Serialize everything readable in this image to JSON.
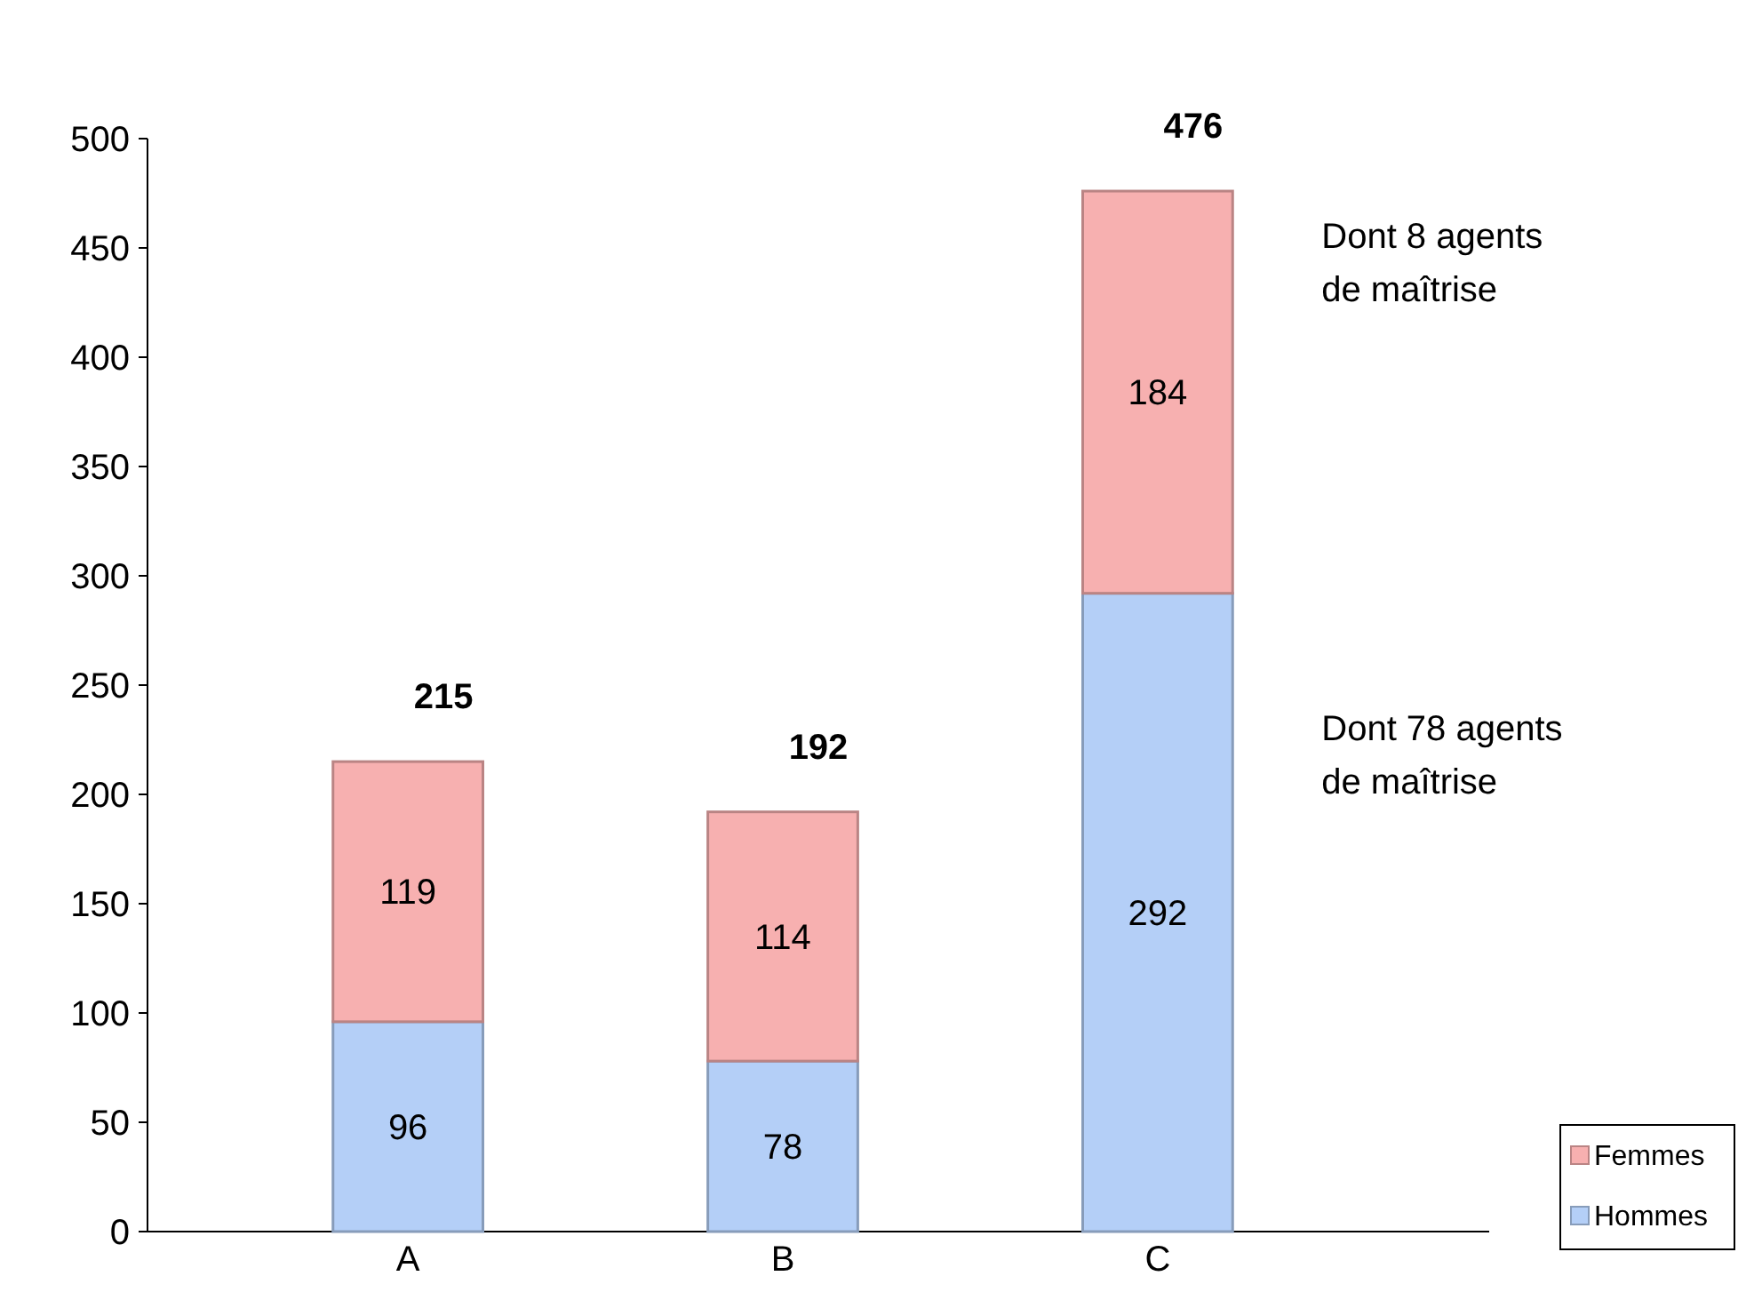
{
  "chart_data": {
    "type": "bar",
    "stacked": true,
    "categories": [
      "A",
      "B",
      "C"
    ],
    "series": [
      {
        "name": "Hommes",
        "color": "#b4cff7",
        "values": [
          96,
          78,
          292
        ]
      },
      {
        "name": "Femmes",
        "color": "#f7b0b0",
        "values": [
          119,
          114,
          184
        ]
      }
    ],
    "ylim": [
      0,
      500
    ],
    "yticks": [
      0,
      50,
      100,
      150,
      200,
      250,
      300,
      350,
      400,
      450,
      500
    ],
    "data_labels": true,
    "totals": [
      "215",
      "192",
      "476"
    ],
    "annotations": [
      "Dont 8 agents de maîtrise",
      "Dont 78 agents de maîtrise"
    ],
    "legend": "bottom right",
    "grid": false
  }
}
